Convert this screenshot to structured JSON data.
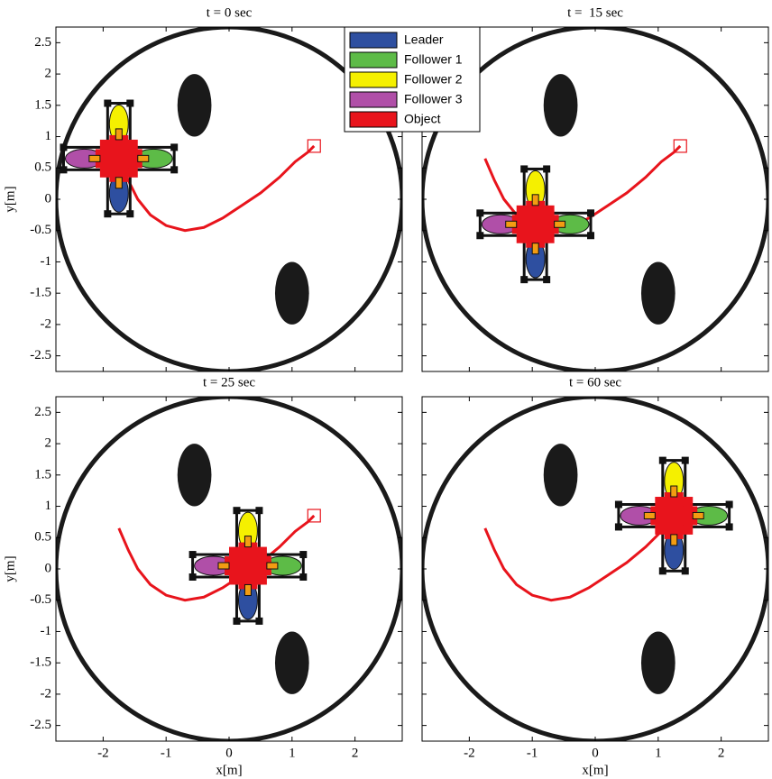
{
  "chart_data": [
    {
      "type": "trajectory",
      "title": "t = 0 sec",
      "ylabel": "y[m]",
      "xlim": [
        -2.75,
        2.75
      ],
      "ylim": [
        -2.75,
        2.75
      ],
      "xticks": [
        -2,
        -1,
        0,
        1,
        2
      ],
      "yticks": [
        -2.5,
        -2,
        -1.5,
        -1,
        -0.5,
        0,
        0.5,
        1,
        1.5,
        2,
        2.5
      ],
      "arena_radius": 2.75,
      "obstacles": [
        {
          "x": -0.55,
          "y": 1.5,
          "rx": 0.27,
          "ry": 0.5
        },
        {
          "x": 1.0,
          "y": -1.5,
          "rx": 0.27,
          "ry": 0.5
        }
      ],
      "goal": {
        "x": 1.35,
        "y": 0.85
      },
      "object": {
        "x": -1.75,
        "y": 0.65
      },
      "path": {
        "x": [
          -1.75,
          -1.6,
          -1.45,
          -1.25,
          -1.0,
          -0.7,
          -0.4,
          -0.1,
          0.2,
          0.5,
          0.8,
          1.05,
          1.25,
          1.35
        ],
        "y": [
          0.65,
          0.3,
          0.0,
          -0.25,
          -0.42,
          -0.5,
          -0.45,
          -0.3,
          -0.1,
          0.1,
          0.35,
          0.6,
          0.75,
          0.85
        ]
      },
      "series": [
        {
          "name": "Leader",
          "color": "#2e4fa0"
        },
        {
          "name": "Follower 1",
          "color": "#5dbb47"
        },
        {
          "name": "Follower 2",
          "color": "#f5f000"
        },
        {
          "name": "Follower 3",
          "color": "#b04fa8"
        },
        {
          "name": "Object",
          "color": "#e8141c"
        }
      ]
    },
    {
      "type": "trajectory",
      "title": "t =  15 sec",
      "xlim": [
        -2.75,
        2.75
      ],
      "ylim": [
        -2.75,
        2.75
      ],
      "xticks": [
        -2,
        -1,
        0,
        1,
        2
      ],
      "yticks": [
        -2.5,
        -2,
        -1.5,
        -1,
        -0.5,
        0,
        0.5,
        1,
        1.5,
        2,
        2.5
      ],
      "arena_radius": 2.75,
      "obstacles": [
        {
          "x": -0.55,
          "y": 1.5,
          "rx": 0.27,
          "ry": 0.5
        },
        {
          "x": 1.0,
          "y": -1.5,
          "rx": 0.27,
          "ry": 0.5
        }
      ],
      "goal": {
        "x": 1.35,
        "y": 0.85
      },
      "object": {
        "x": -0.95,
        "y": -0.4
      },
      "path": {
        "x": [
          -1.75,
          -1.6,
          -1.45,
          -1.25,
          -1.0,
          -0.7,
          -0.4,
          -0.1,
          0.2,
          0.5,
          0.8,
          1.05,
          1.25,
          1.35
        ],
        "y": [
          0.65,
          0.3,
          0.0,
          -0.25,
          -0.42,
          -0.5,
          -0.45,
          -0.3,
          -0.1,
          0.1,
          0.35,
          0.6,
          0.75,
          0.85
        ]
      }
    },
    {
      "type": "trajectory",
      "title": "t = 25 sec",
      "xlabel": "x[m]",
      "ylabel": "y[m]",
      "xlim": [
        -2.75,
        2.75
      ],
      "ylim": [
        -2.75,
        2.75
      ],
      "xticks": [
        -2,
        -1,
        0,
        1,
        2
      ],
      "yticks": [
        -2.5,
        -2,
        -1.5,
        -1,
        -0.5,
        0,
        0.5,
        1,
        1.5,
        2,
        2.5
      ],
      "arena_radius": 2.75,
      "obstacles": [
        {
          "x": -0.55,
          "y": 1.5,
          "rx": 0.27,
          "ry": 0.5
        },
        {
          "x": 1.0,
          "y": -1.5,
          "rx": 0.27,
          "ry": 0.5
        }
      ],
      "goal": {
        "x": 1.35,
        "y": 0.85
      },
      "object": {
        "x": 0.3,
        "y": 0.05
      },
      "path": {
        "x": [
          -1.75,
          -1.6,
          -1.45,
          -1.25,
          -1.0,
          -0.7,
          -0.4,
          -0.1,
          0.2,
          0.5,
          0.8,
          1.05,
          1.25,
          1.35
        ],
        "y": [
          0.65,
          0.3,
          0.0,
          -0.25,
          -0.42,
          -0.5,
          -0.45,
          -0.3,
          -0.1,
          0.1,
          0.35,
          0.6,
          0.75,
          0.85
        ]
      }
    },
    {
      "type": "trajectory",
      "title": "t = 60 sec",
      "xlabel": "x[m]",
      "xlim": [
        -2.75,
        2.75
      ],
      "ylim": [
        -2.75,
        2.75
      ],
      "xticks": [
        -2,
        -1,
        0,
        1,
        2
      ],
      "yticks": [
        -2.5,
        -2,
        -1.5,
        -1,
        -0.5,
        0,
        0.5,
        1,
        1.5,
        2,
        2.5
      ],
      "arena_radius": 2.75,
      "obstacles": [
        {
          "x": -0.55,
          "y": 1.5,
          "rx": 0.27,
          "ry": 0.5
        },
        {
          "x": 1.0,
          "y": -1.5,
          "rx": 0.27,
          "ry": 0.5
        }
      ],
      "goal": {
        "x": 1.35,
        "y": 0.85
      },
      "object": {
        "x": 1.25,
        "y": 0.85
      },
      "path": {
        "x": [
          -1.75,
          -1.6,
          -1.45,
          -1.25,
          -1.0,
          -0.7,
          -0.4,
          -0.1,
          0.2,
          0.5,
          0.8,
          1.05,
          1.25,
          1.35
        ],
        "y": [
          0.65,
          0.3,
          0.0,
          -0.25,
          -0.42,
          -0.5,
          -0.45,
          -0.3,
          -0.1,
          0.1,
          0.35,
          0.6,
          0.75,
          0.85
        ]
      }
    }
  ]
}
